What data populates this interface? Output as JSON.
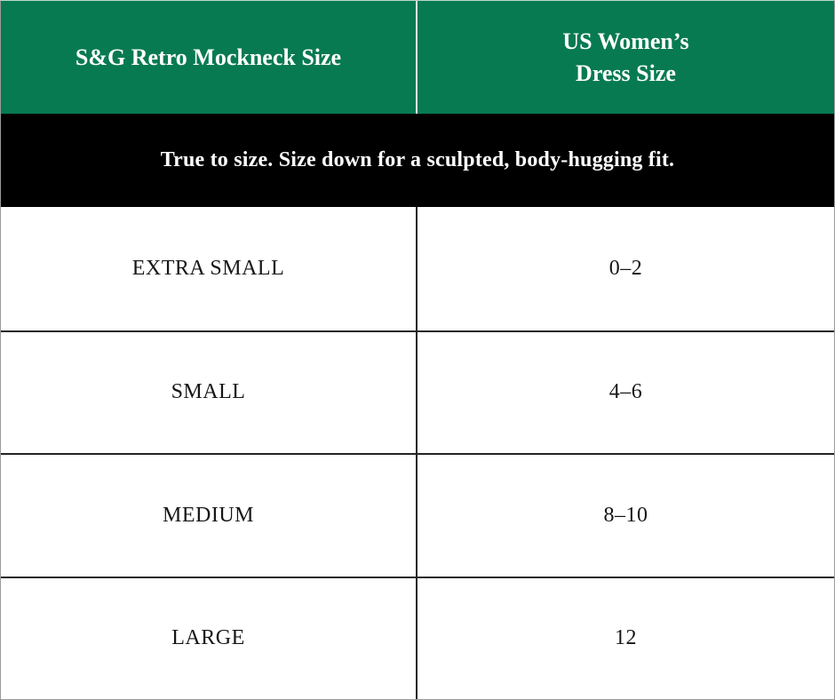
{
  "table": {
    "header": {
      "col1": "S&G Retro Mockneck Size",
      "col2_line1": "US Women’s",
      "col2_line2": "Dress Size"
    },
    "banner": "True to size. Size down for a sculpted, body-hugging fit.",
    "rows": [
      {
        "size": "EXTRA SMALL",
        "dress": "0–2"
      },
      {
        "size": "SMALL",
        "dress": "4–6"
      },
      {
        "size": "MEDIUM",
        "dress": "8–10"
      },
      {
        "size": "LARGE",
        "dress": "12"
      }
    ]
  },
  "colors": {
    "header_bg": "#077a52",
    "header_text": "#ffffff",
    "banner_bg": "#000000",
    "row_bg": "#ffffff",
    "body_text": "#161616",
    "grid_line": "#242424"
  }
}
